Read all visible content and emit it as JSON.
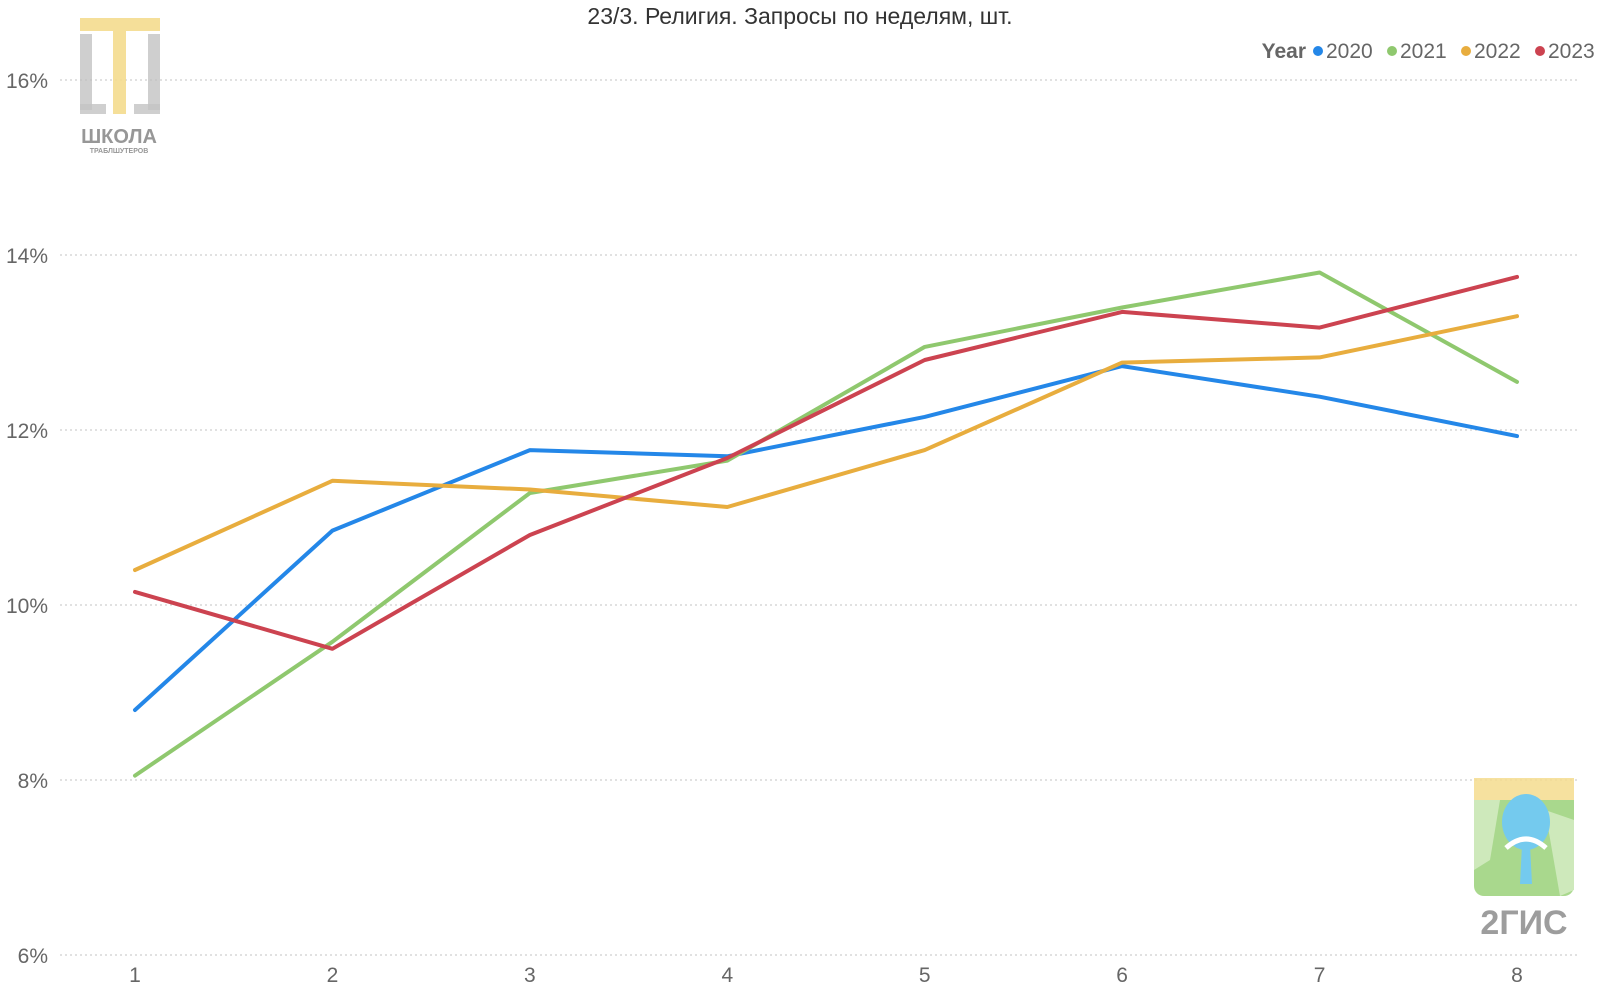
{
  "chart_data": {
    "type": "line",
    "title": "23/3. Религия. Запросы по неделям, шт.",
    "xlabel": "",
    "ylabel": "",
    "x": [
      1,
      2,
      3,
      4,
      5,
      6,
      7,
      8
    ],
    "ylim": [
      6,
      16.5
    ],
    "y_ticks": [
      6,
      8,
      10,
      12,
      14,
      16
    ],
    "y_tick_format": "%",
    "grid": true,
    "legend": {
      "title": "Year",
      "position": "top-right"
    },
    "series": [
      {
        "name": "2020",
        "color": "#2487e8",
        "values": [
          8.8,
          10.85,
          11.77,
          11.7,
          12.15,
          12.73,
          12.38,
          11.93
        ]
      },
      {
        "name": "2021",
        "color": "#8fc86e",
        "values": [
          8.05,
          9.58,
          11.28,
          11.65,
          12.95,
          13.4,
          13.8,
          12.55
        ]
      },
      {
        "name": "2022",
        "color": "#e8ad3e",
        "values": [
          10.4,
          11.42,
          11.32,
          11.12,
          11.77,
          12.77,
          12.83,
          13.3
        ]
      },
      {
        "name": "2023",
        "color": "#cc4350",
        "values": [
          10.15,
          9.5,
          10.8,
          11.68,
          12.8,
          13.35,
          13.17,
          13.75
        ]
      }
    ]
  },
  "logos": {
    "top_left": {
      "name": "ШКОЛА",
      "subtitle": "ТРАБЛШУТЕРОВ"
    },
    "bottom_right": {
      "name": "2ГИС"
    }
  }
}
